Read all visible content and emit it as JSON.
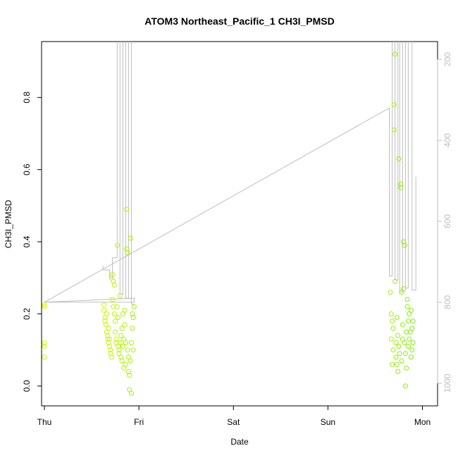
{
  "chart_data": {
    "type": "scatter",
    "title": "ATOM3 Northeast_Pacific_1 CH3I_PMSD",
    "xlabel": "Date",
    "ylabel": "CH3I_PMSD",
    "x_ticks": [
      "Thu",
      "Fri",
      "Sat",
      "Sun",
      "Mon"
    ],
    "x_range_days": [
      -0.03,
      4.16
    ],
    "y_ticks": [
      "0.0",
      "0.2",
      "0.4",
      "0.6",
      "0.8"
    ],
    "y_tick_values": [
      0,
      0.2,
      0.4,
      0.6,
      0.8
    ],
    "ylim": [
      -0.055,
      0.955
    ],
    "secondary_axis": {
      "side": "right",
      "ticks": [
        "200",
        "400",
        "600",
        "800",
        "1000"
      ],
      "tick_values": [
        200,
        400,
        600,
        800,
        1000
      ],
      "range": [
        1056,
        156
      ],
      "reversed": true,
      "color": "#bebebe"
    },
    "grid": false,
    "legend": "none",
    "point_color_start": "#d4f500",
    "point_color_end": "#7cf000",
    "line_color": "#bebebe",
    "series": [
      {
        "type": "scatter",
        "points": [
          [
            0.0,
            0.225
          ],
          [
            0.0,
            0.22
          ],
          [
            0.0,
            0.12
          ],
          [
            0.0,
            0.11
          ],
          [
            0.0,
            0.08
          ],
          [
            0.63,
            0.225
          ],
          [
            0.63,
            0.21
          ],
          [
            0.64,
            0.19
          ],
          [
            0.64,
            0.18
          ],
          [
            0.65,
            0.17
          ],
          [
            0.66,
            0.2
          ],
          [
            0.66,
            0.15
          ],
          [
            0.67,
            0.14
          ],
          [
            0.67,
            0.13
          ],
          [
            0.68,
            0.12
          ],
          [
            0.68,
            0.16
          ],
          [
            0.69,
            0.13
          ],
          [
            0.69,
            0.11
          ],
          [
            0.7,
            0.1
          ],
          [
            0.7,
            0.09
          ],
          [
            0.71,
            0.08
          ],
          [
            0.71,
            0.3
          ],
          [
            0.72,
            0.31
          ],
          [
            0.72,
            0.24
          ],
          [
            0.73,
            0.22
          ],
          [
            0.73,
            0.29
          ],
          [
            0.74,
            0.28
          ],
          [
            0.74,
            0.2
          ],
          [
            0.75,
            0.18
          ],
          [
            0.75,
            0.15
          ],
          [
            0.76,
            0.13
          ],
          [
            0.76,
            0.12
          ],
          [
            0.77,
            0.39
          ],
          [
            0.77,
            0.22
          ],
          [
            0.78,
            0.19
          ],
          [
            0.78,
            0.11
          ],
          [
            0.79,
            0.1
          ],
          [
            0.79,
            0.09
          ],
          [
            0.8,
            0.25
          ],
          [
            0.8,
            0.12
          ],
          [
            0.81,
            0.14
          ],
          [
            0.81,
            0.08
          ],
          [
            0.82,
            0.07
          ],
          [
            0.82,
            0.16
          ],
          [
            0.83,
            0.2
          ],
          [
            0.83,
            0.11
          ],
          [
            0.84,
            0.05
          ],
          [
            0.84,
            0.13
          ],
          [
            0.85,
            0.17
          ],
          [
            0.85,
            0.21
          ],
          [
            0.86,
            0.12
          ],
          [
            0.86,
            0.06
          ],
          [
            0.87,
            0.49
          ],
          [
            0.87,
            0.38
          ],
          [
            0.88,
            0.37
          ],
          [
            0.88,
            0.1
          ],
          [
            0.89,
            0.08
          ],
          [
            0.89,
            0.04
          ],
          [
            0.9,
            -0.01
          ],
          [
            0.9,
            0.03
          ],
          [
            0.91,
            0.41
          ],
          [
            0.91,
            0.07
          ],
          [
            0.92,
            -0.02
          ],
          [
            0.92,
            0.12
          ],
          [
            0.93,
            0.16
          ],
          [
            0.93,
            0.2
          ],
          [
            0.94,
            0.19
          ],
          [
            0.94,
            0.1
          ],
          [
            0.95,
            0.22
          ],
          [
            3.66,
            0.26
          ],
          [
            3.67,
            0.2
          ],
          [
            3.67,
            0.13
          ],
          [
            3.68,
            0.06
          ],
          [
            3.68,
            0.18
          ],
          [
            3.69,
            0.16
          ],
          [
            3.69,
            0.1
          ],
          [
            3.7,
            0.78
          ],
          [
            3.7,
            0.71
          ],
          [
            3.71,
            0.92
          ],
          [
            3.71,
            0.29
          ],
          [
            3.72,
            0.12
          ],
          [
            3.72,
            0.08
          ],
          [
            3.73,
            0.06
          ],
          [
            3.73,
            0.19
          ],
          [
            3.74,
            0.04
          ],
          [
            3.74,
            0.14
          ],
          [
            3.75,
            0.63
          ],
          [
            3.75,
            0.11
          ],
          [
            3.76,
            0.09
          ],
          [
            3.77,
            0.55
          ],
          [
            3.77,
            0.56
          ],
          [
            3.78,
            0.26
          ],
          [
            3.78,
            0.07
          ],
          [
            3.79,
            0.17
          ],
          [
            3.79,
            0.13
          ],
          [
            3.8,
            0.27
          ],
          [
            3.8,
            0.4
          ],
          [
            3.81,
            0.39
          ],
          [
            3.81,
            0.12
          ],
          [
            3.82,
            0.09
          ],
          [
            3.82,
            0.0
          ],
          [
            3.83,
            0.15
          ],
          [
            3.83,
            0.05
          ],
          [
            3.84,
            0.24
          ],
          [
            3.84,
            0.22
          ],
          [
            3.85,
            0.18
          ],
          [
            3.85,
            0.11
          ],
          [
            3.86,
            0.2
          ],
          [
            3.86,
            0.13
          ],
          [
            3.87,
            0.15
          ],
          [
            3.88,
            0.08
          ],
          [
            3.88,
            0.21
          ],
          [
            3.89,
            0.16
          ],
          [
            3.89,
            0.1
          ],
          [
            3.9,
            0.12
          ],
          [
            3.9,
            0.18
          ]
        ]
      },
      {
        "type": "line",
        "axis": "secondary",
        "points": [
          [
            0.0,
            800
          ],
          [
            0.95,
            800
          ],
          [
            0.95,
            790
          ],
          [
            0.0,
            800
          ],
          [
            3.65,
            320
          ],
          [
            3.65,
            735
          ],
          [
            3.68,
            735
          ],
          [
            3.68,
            100
          ],
          [
            3.71,
            100
          ],
          [
            3.71,
            745
          ],
          [
            3.74,
            745
          ],
          [
            3.74,
            100
          ],
          [
            3.76,
            100
          ],
          [
            3.76,
            775
          ],
          [
            3.79,
            775
          ],
          [
            3.79,
            100
          ],
          [
            3.82,
            100
          ],
          [
            3.82,
            765
          ],
          [
            3.85,
            765
          ],
          [
            3.85,
            100
          ],
          [
            3.89,
            100
          ],
          [
            3.89,
            770
          ],
          [
            3.93,
            770
          ],
          [
            3.93,
            490
          ]
        ]
      },
      {
        "type": "line",
        "axis": "secondary",
        "points": [
          [
            0.62,
            710
          ],
          [
            0.62,
            720
          ],
          [
            0.69,
            720
          ],
          [
            0.69,
            740
          ],
          [
            0.72,
            740
          ],
          [
            0.72,
            690
          ],
          [
            0.77,
            690
          ],
          [
            0.77,
            100
          ],
          [
            0.8,
            100
          ],
          [
            0.8,
            780
          ],
          [
            0.83,
            780
          ],
          [
            0.83,
            100
          ],
          [
            0.86,
            100
          ],
          [
            0.86,
            790
          ],
          [
            0.89,
            790
          ],
          [
            0.89,
            100
          ],
          [
            0.92,
            100
          ],
          [
            0.92,
            805
          ],
          [
            0.95,
            805
          ]
        ]
      }
    ]
  }
}
